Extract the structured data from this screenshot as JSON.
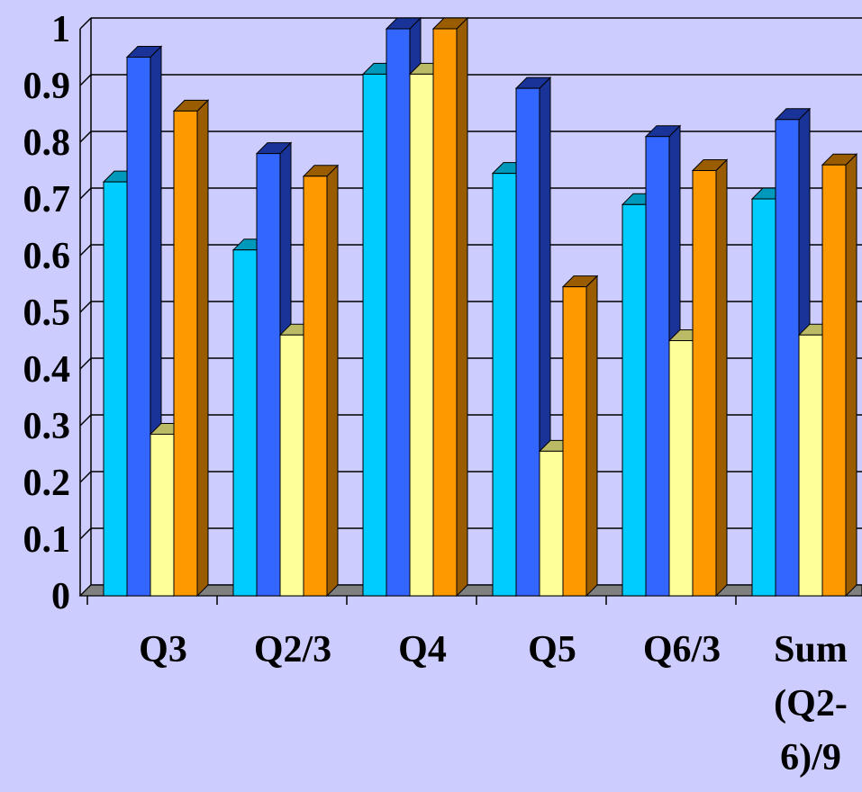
{
  "chart_data": {
    "type": "bar",
    "title": "",
    "xlabel": "",
    "ylabel": "",
    "ylim": [
      0,
      1
    ],
    "yticks": [
      "0",
      "0.1",
      "0.2",
      "0.3",
      "0.4",
      "0.5",
      "0.6",
      "0.7",
      "0.8",
      "0.9",
      "1"
    ],
    "categories": [
      [
        "Q3"
      ],
      [
        "Q2/3"
      ],
      [
        "Q4"
      ],
      [
        "Q5"
      ],
      [
        "Q6/3"
      ],
      [
        "Sum",
        "(Q2-",
        "6)/9"
      ]
    ],
    "series": [
      {
        "color": "#00ccff",
        "side": "#0099bb",
        "values": [
          0.73,
          0.61,
          0.92,
          0.745,
          0.69,
          0.7
        ]
      },
      {
        "color": "#3366ff",
        "side": "#1a3399",
        "values": [
          0.95,
          0.78,
          1.0,
          0.895,
          0.81,
          0.84
        ]
      },
      {
        "color": "#ffff99",
        "side": "#bbbb66",
        "values": [
          0.285,
          0.46,
          0.92,
          0.255,
          0.45,
          0.46
        ]
      },
      {
        "color": "#ff9900",
        "side": "#995c00",
        "values": [
          0.855,
          0.74,
          1.0,
          0.545,
          0.75,
          0.76
        ]
      }
    ],
    "grid": true,
    "legend": "none"
  }
}
